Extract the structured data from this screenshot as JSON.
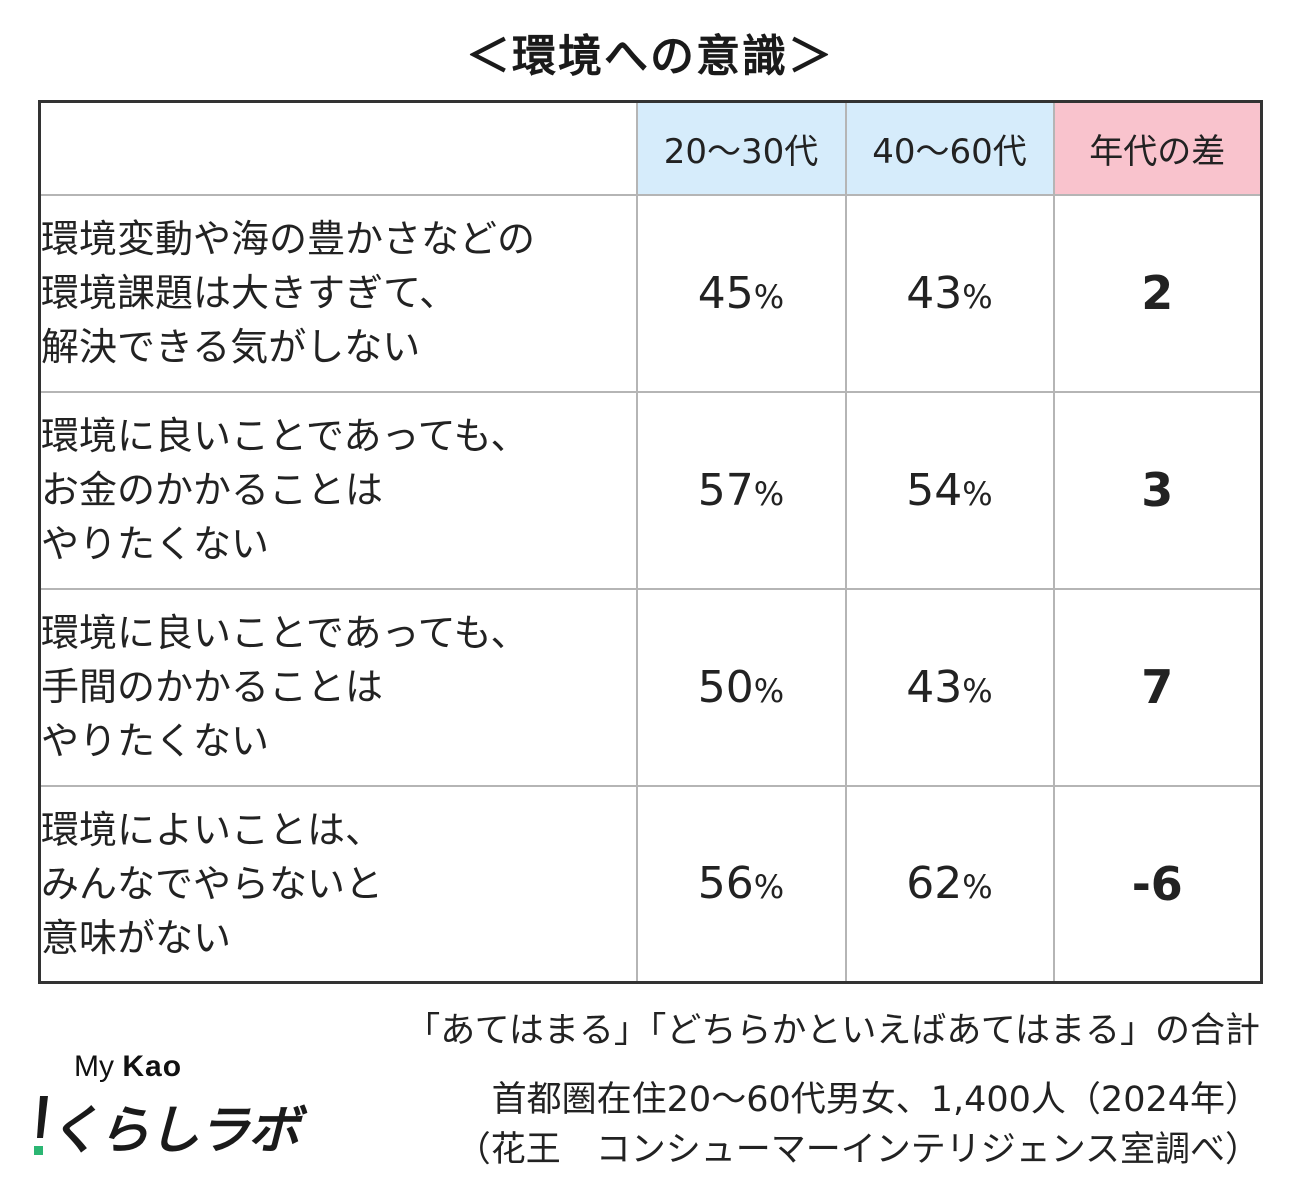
{
  "chart_data": {
    "type": "table",
    "title": "＜環境への意識＞",
    "columns": [
      "20～30代",
      "40～60代",
      "年代の差"
    ],
    "rows": [
      {
        "label_lines": [
          "環境変動や海の豊かさなどの",
          "環境課題は大きすぎて、",
          "解決できる気がしない"
        ],
        "v1": "45",
        "v2": "43",
        "diff": "2"
      },
      {
        "label_lines": [
          "環境に良いことであっても、",
          "お金のかかることは",
          "やりたくない"
        ],
        "v1": "57",
        "v2": "54",
        "diff": "3"
      },
      {
        "label_lines": [
          "環境に良いことであっても、",
          "手間のかかることは",
          "やりたくない"
        ],
        "v1": "50",
        "v2": "43",
        "diff": "7"
      },
      {
        "label_lines": [
          "環境によいことは、",
          "みんなでやらないと",
          "意味がない"
        ],
        "v1": "56",
        "v2": "62",
        "diff": "-6"
      }
    ],
    "unit": "%",
    "header_colors": {
      "age_columns": "#d6ecfb",
      "difference_column": "#f9c3cd"
    }
  },
  "footnote": "「あてはまる」「どちらかといえばあてはまる」の合計",
  "survey": [
    "首都圏在住20～60代男女、1,400人（2024年）",
    "（花王　コンシューマーインテリジェンス室調べ）"
  ],
  "logo": {
    "prefix": "My",
    "brand": "Kao",
    "name": "くらしラボ",
    "accent_color": "#2bb673"
  }
}
